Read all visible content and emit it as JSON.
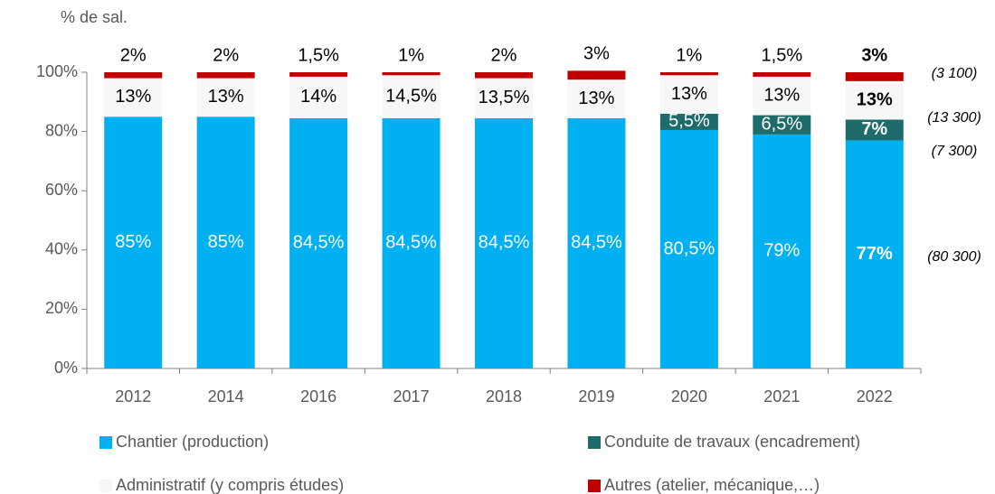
{
  "chart_data": {
    "type": "stacked_bar",
    "ylabel": "% de sal.",
    "categories": [
      "2012",
      "2014",
      "2016",
      "2017",
      "2018",
      "2019",
      "2020",
      "2021",
      "2022"
    ],
    "series": [
      {
        "name": "Chantier (production)",
        "color": "#00b0f0",
        "label_color": "#ffffff",
        "values": [
          85,
          85,
          84.5,
          84.5,
          84.5,
          84.5,
          80.5,
          79,
          77
        ],
        "value_labels": [
          "85%",
          "85%",
          "84,5%",
          "84,5%",
          "84,5%",
          "84,5%",
          "80,5%",
          "79%",
          "77%"
        ]
      },
      {
        "name": "Conduite de travaux (encadrement)",
        "color": "#1e6b6b",
        "label_color": "#ffffff",
        "values": [
          null,
          null,
          null,
          null,
          null,
          null,
          5.5,
          6.5,
          7
        ],
        "value_labels": [
          null,
          null,
          null,
          null,
          null,
          null,
          "5,5%",
          "6,5%",
          "7%"
        ]
      },
      {
        "name": "Administratif (y compris études)",
        "color": "#f7f7f7",
        "label_color": "#000000",
        "values": [
          13,
          13,
          14,
          14.5,
          13.5,
          13,
          13,
          13,
          13
        ],
        "value_labels": [
          "13%",
          "13%",
          "14%",
          "14,5%",
          "13,5%",
          "13%",
          "13%",
          "13%",
          "13%"
        ]
      },
      {
        "name": "Autres (atelier, mécanique,…)",
        "color": "#c00000",
        "label_color": "#000000",
        "label_above": true,
        "values": [
          2,
          2,
          1.5,
          1,
          2,
          3,
          1,
          1.5,
          3
        ],
        "value_labels": [
          "2%",
          "2%",
          "1,5%",
          "1%",
          "2%",
          "3%",
          "1%",
          "1,5%",
          "3%"
        ]
      }
    ],
    "annotations": [
      "(3 100)",
      "(13 300)",
      "(7 300)",
      "(80 300)"
    ],
    "bold_last": true,
    "ylim": [
      0,
      100
    ],
    "yticks": [
      {
        "value": 0,
        "label": "0%"
      },
      {
        "value": 20,
        "label": "20%"
      },
      {
        "value": 40,
        "label": "40%"
      },
      {
        "value": 60,
        "label": "60%"
      },
      {
        "value": 80,
        "label": "80%"
      },
      {
        "value": 100,
        "label": "100%"
      }
    ],
    "grid": false
  }
}
